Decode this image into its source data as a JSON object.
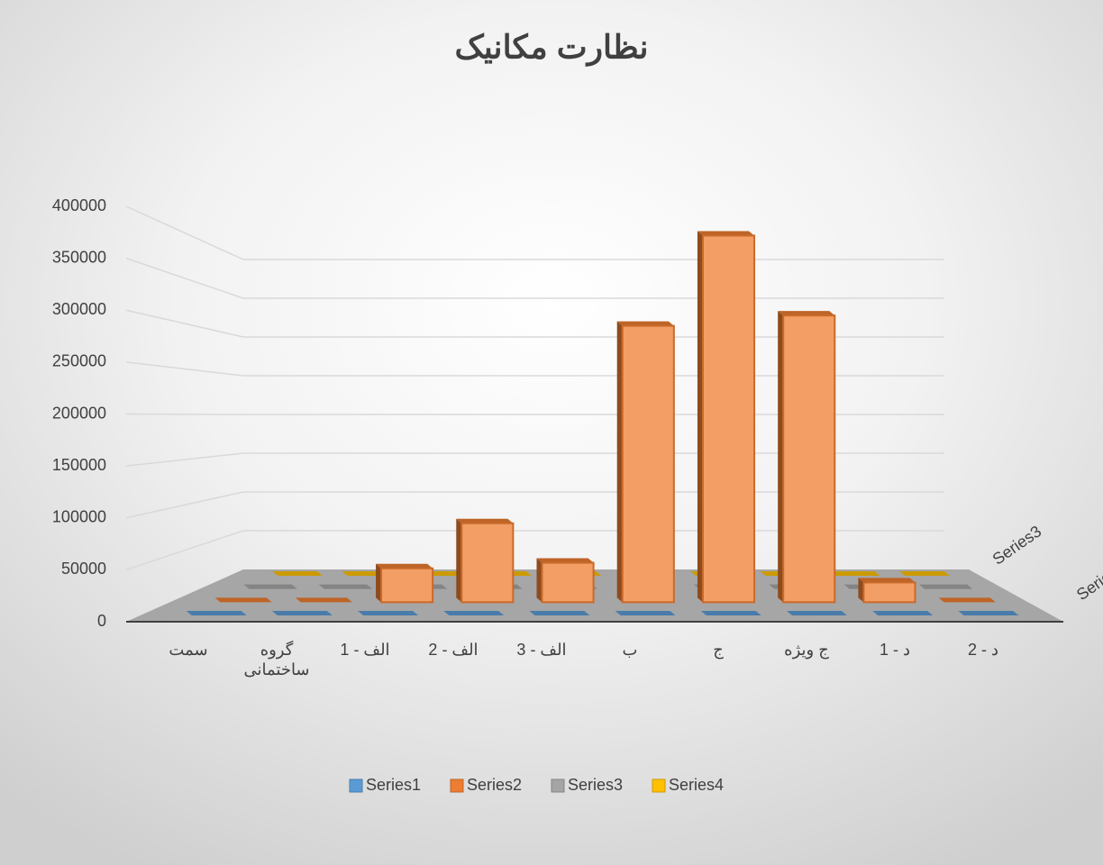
{
  "chart_data": {
    "type": "bar3d",
    "title": "نظارت مکانیک",
    "categories": [
      "سمت",
      "گروه ساختمانی",
      "الف - 1",
      "الف - 2",
      "الف - 3",
      "ب",
      "ج",
      "ج ویژه",
      "د - 1",
      "د - 2"
    ],
    "series": [
      {
        "name": "Series1",
        "color": "#5b9bd5",
        "values": [
          0,
          0,
          0,
          0,
          0,
          0,
          0,
          0,
          0,
          0
        ]
      },
      {
        "name": "Series2",
        "color": "#ed7d31",
        "values": [
          0,
          0,
          36000,
          84000,
          42000,
          294000,
          390000,
          305000,
          21000,
          0
        ]
      },
      {
        "name": "Series3",
        "color": "#a5a5a5",
        "values": [
          0,
          0,
          0,
          0,
          0,
          0,
          0,
          0,
          0,
          0
        ]
      },
      {
        "name": "Series4",
        "color": "#ffc000",
        "values": [
          0,
          0,
          0,
          0,
          0,
          0,
          0,
          0,
          0,
          0
        ]
      }
    ],
    "ylim": [
      0,
      400000
    ],
    "yticks": [
      0,
      50000,
      100000,
      150000,
      200000,
      250000,
      300000,
      350000,
      400000
    ],
    "grid": true,
    "legend": "bottom"
  }
}
